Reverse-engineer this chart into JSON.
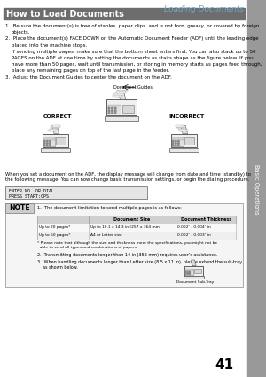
{
  "page_number": "41",
  "chapter_title": "Loading Documents",
  "section_title": "How to Load Documents",
  "section_title_bg": "#6d6d6d",
  "section_title_color": "#ffffff",
  "chapter_title_color": "#6fa8c8",
  "sidebar_color": "#999999",
  "bg_color": "#ffffff",
  "body_lines": [
    {
      "indent": 0,
      "text": "1.  Be sure the document(s) is free of staples, paper clips, and is not torn, greasy, or covered by foreign"
    },
    {
      "indent": 1,
      "text": "objects."
    },
    {
      "indent": 0,
      "text": "2.  Place the document(s) FACE DOWN on the Automatic Document Feeder (ADF) until the leading edge"
    },
    {
      "indent": 1,
      "text": "placed into the machine stops."
    },
    {
      "indent": 1,
      "text": "If sending multiple pages, make sure that the bottom sheet enters first. You can also stack up to 50"
    },
    {
      "indent": 1,
      "text": "PAGES on the ADF at one time by setting the documents as stairs shape as the figure below. If you"
    },
    {
      "indent": 1,
      "text": "have more than 50 pages, wait until transmission, or storing in memory starts as pages feed through,"
    },
    {
      "indent": 1,
      "text": "place any remaining pages on top of the last page in the feeder."
    },
    {
      "indent": 0,
      "text": "3.  Adjust the Document Guides to center the document on the ADF."
    }
  ],
  "diagram_label_center": "Document Guides",
  "correct_label": "CORRECT",
  "incorrect_label": "INCORRECT",
  "below_lines": [
    "When you set a document on the ADF, the display message will change from date and time (standby) to",
    "the following message. You can now change basic transmission settings, or begin the dialing procedure."
  ],
  "lcd_lines": [
    "ENTER NO. OR DIAL",
    "PRESS START:CPS"
  ],
  "note_title": "NOTE",
  "note_line1": "1.  The document limitation to send multiple pages is as follows:",
  "table_col0_header": "",
  "table_col1_header": "Document Size",
  "table_col2_header": "Document Thickness",
  "table_rows": [
    [
      "Up to 20 pages*",
      "Up to 10.1 x 14.3 in (257 x 364 mm)",
      "0.002″ - 0.004″ in"
    ],
    [
      "Up to 50 pages*",
      "A4 or Letter size",
      "0.002″ - 0.003″ in"
    ]
  ],
  "table_footnote1": "* Please note that although the size and thickness meet the specifications, you might not be",
  "table_footnote2": "  able to send all types and combinations of papers.",
  "note_line2": "2.  Transmitting documents longer than 14 in (356 mm) requires user’s assistance.",
  "note_line3a": "3.  When handling documents longer than Letter size (8.5 x 11 in), please extend the sub-tray",
  "note_line3b": "    as shown below.",
  "subtray_label": "Document Sub-Tray"
}
